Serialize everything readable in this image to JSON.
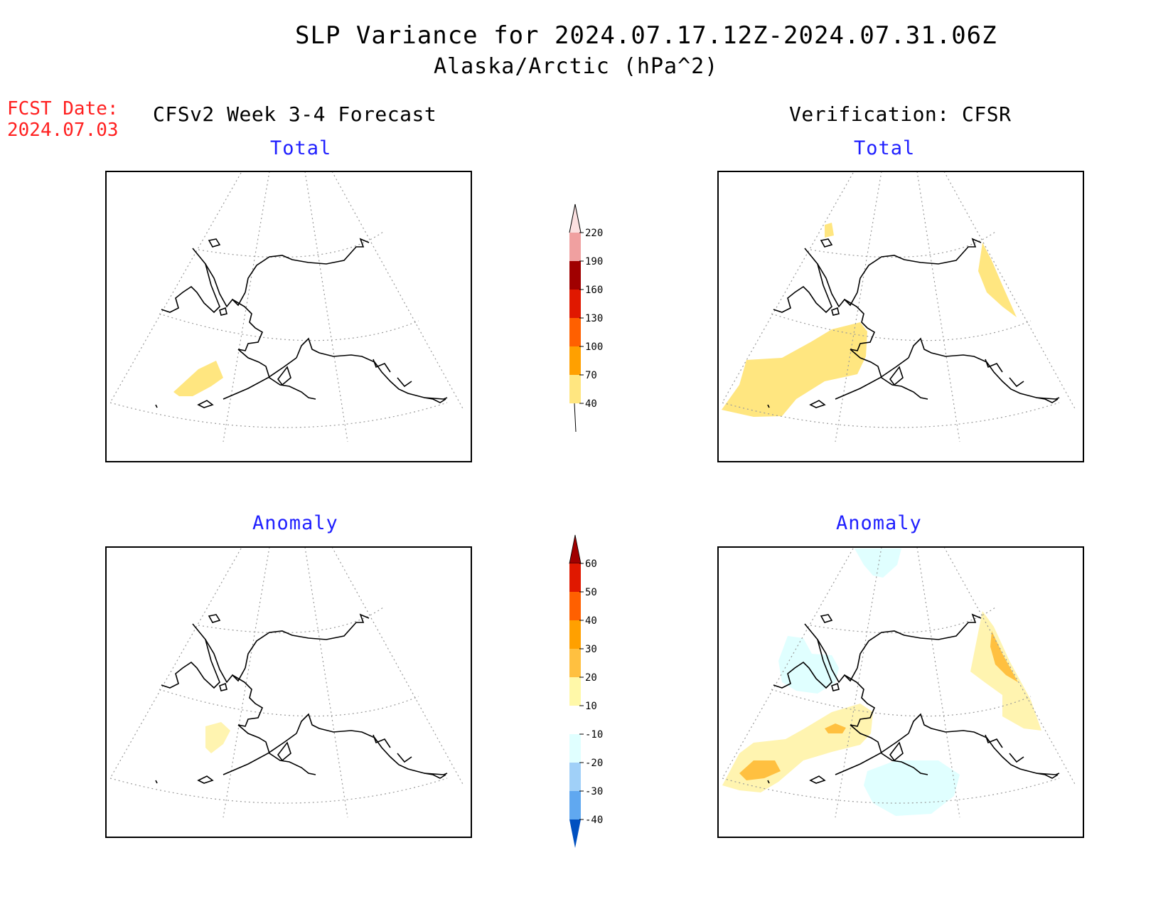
{
  "header": {
    "title": "SLP Variance for 2024.07.17.12Z-2024.07.31.06Z",
    "subtitle": "Alaska/Arctic (hPa^2)",
    "fcst_label": "FCST Date:",
    "fcst_date": "2024.07.03",
    "left_column": "CFSv2 Week 3-4 Forecast",
    "right_column": "Verification: CFSR"
  },
  "panels": [
    {
      "id": "forecast-total",
      "title": "Total"
    },
    {
      "id": "verification-total",
      "title": "Total"
    },
    {
      "id": "forecast-anomaly",
      "title": "Anomaly"
    },
    {
      "id": "verification-anomaly",
      "title": "Anomaly"
    }
  ],
  "colorbars": {
    "total": {
      "levels": [
        "220",
        "190",
        "160",
        "130",
        "100",
        "70",
        "40"
      ],
      "colors": [
        "#fbe0e0",
        "#f0a0a0",
        "#a00000",
        "#e01800",
        "#ff6000",
        "#ffa000",
        "#ffe680"
      ]
    },
    "anomaly": {
      "levels": [
        "60",
        "50",
        "40",
        "30",
        "20",
        "10",
        "-10",
        "-20",
        "-30",
        "-40"
      ],
      "colors": [
        "#a00000",
        "#e01800",
        "#ff6000",
        "#ffa000",
        "#ffc040",
        "#fff8a8",
        "#ffffff",
        "#e0ffff",
        "#a0d0f8",
        "#60a8f0",
        "#1870d8",
        "#0050c0"
      ]
    }
  },
  "map_colors": {
    "shade_yellow": "#ffe680",
    "shade_light_yellow": "#fff4b0",
    "shade_orange": "#ffc040",
    "shade_light_blue": "#e0ffff",
    "coastline": "#000000",
    "graticule": "#9a9a9a"
  }
}
